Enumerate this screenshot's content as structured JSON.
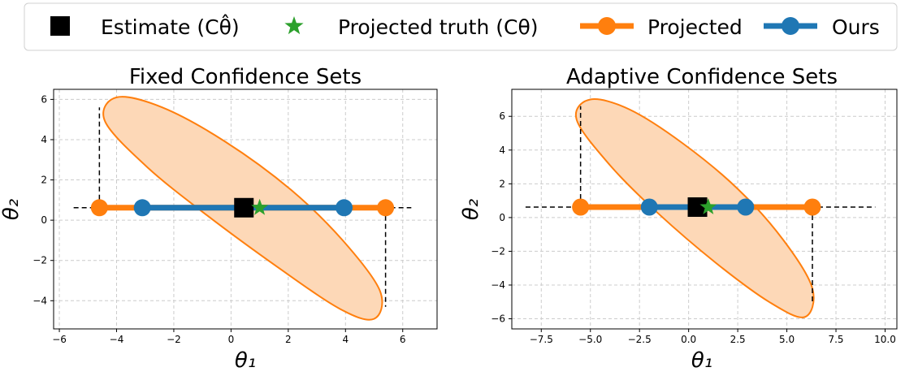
{
  "legend": {
    "items": [
      {
        "label": "Estimate (Cθ̂)",
        "marker": "square",
        "color": "#000000"
      },
      {
        "label": "Projected truth (Cθ)",
        "marker": "star",
        "color": "#2ca02c"
      },
      {
        "label": "Projected",
        "marker": "line-circle",
        "color": "#ff7f0e"
      },
      {
        "label": "Ours",
        "marker": "line-circle",
        "color": "#1f77b4"
      }
    ]
  },
  "colors": {
    "projected": "#ff7f0e",
    "ours": "#1f77b4",
    "estimate": "#000000",
    "truth": "#2ca02c",
    "ellipse_fill": "#fdd8b7",
    "grid": "#cccccc"
  },
  "chart_data": [
    {
      "type": "line",
      "title": "Fixed Confidence Sets",
      "xlabel": "θ₁",
      "ylabel": "θ₂",
      "xlim": [
        -6.2,
        7.2
      ],
      "ylim": [
        -5.4,
        6.5
      ],
      "xticks": [
        -6,
        -4,
        -2,
        0,
        2,
        4,
        6
      ],
      "xtick_labels": [
        "−6",
        "−4",
        "−2",
        "0",
        "2",
        "4",
        "6"
      ],
      "yticks": [
        -4,
        -2,
        0,
        2,
        4,
        6
      ],
      "ytick_labels": [
        "−4",
        "−2",
        "0",
        "2",
        "4",
        "6"
      ],
      "grid": true,
      "ellipse_boundary": [
        [
          -4.0,
          6.1
        ],
        [
          -2.4,
          5.6
        ],
        [
          -0.2,
          3.9
        ],
        [
          2.1,
          1.5
        ],
        [
          3.9,
          -1.0
        ],
        [
          5.2,
          -3.5
        ],
        [
          5.0,
          -4.9
        ],
        [
          3.8,
          -4.4
        ],
        [
          1.6,
          -2.3
        ],
        [
          -0.8,
          0.2
        ],
        [
          -2.9,
          2.6
        ],
        [
          -4.4,
          4.9
        ],
        [
          -4.0,
          6.1
        ]
      ],
      "dashed_line_y": 0.62,
      "dashed_line_x_range": [
        -5.5,
        6.3
      ],
      "projected_interval": [
        -4.6,
        5.4
      ],
      "ours_interval": [
        -3.1,
        3.95
      ],
      "vertical_dashed": [
        {
          "x": -4.6,
          "y_from": 0.62,
          "y_to": 5.6
        },
        {
          "x": 5.4,
          "y_from": 0.62,
          "y_to": -4.3
        }
      ],
      "estimate": [
        0.45,
        0.62
      ],
      "projected_truth": [
        1.0,
        0.62
      ]
    },
    {
      "type": "line",
      "title": "Adaptive Confidence Sets",
      "xlabel": "θ₁",
      "ylabel": "θ₂",
      "xlim": [
        -9.0,
        10.6
      ],
      "ylim": [
        -6.6,
        7.6
      ],
      "xticks": [
        -7.5,
        -5.0,
        -2.5,
        0.0,
        2.5,
        5.0,
        7.5,
        10.0
      ],
      "xtick_labels": [
        "−7.5",
        "−5.0",
        "−2.5",
        "0.0",
        "2.5",
        "5.0",
        "7.5",
        "10.0"
      ],
      "yticks": [
        -6,
        -4,
        -2,
        0,
        2,
        4,
        6
      ],
      "ytick_labels": [
        "−6",
        "−4",
        "−2",
        "0",
        "2",
        "4",
        "6"
      ],
      "grid": true,
      "ellipse_boundary": [
        [
          -5.0,
          7.0
        ],
        [
          -3.0,
          6.4
        ],
        [
          -0.3,
          4.4
        ],
        [
          2.5,
          1.7
        ],
        [
          4.8,
          -1.3
        ],
        [
          6.3,
          -4.2
        ],
        [
          5.9,
          -5.9
        ],
        [
          4.1,
          -5.0
        ],
        [
          1.4,
          -2.7
        ],
        [
          -1.6,
          0.3
        ],
        [
          -4.0,
          3.1
        ],
        [
          -5.7,
          5.8
        ],
        [
          -5.0,
          7.0
        ]
      ],
      "dashed_line_y": 0.62,
      "dashed_line_x_range": [
        -8.3,
        9.5
      ],
      "projected_interval": [
        -5.5,
        6.3
      ],
      "ours_interval": [
        -2.0,
        2.9
      ],
      "vertical_dashed": [
        {
          "x": -5.5,
          "y_from": 0.62,
          "y_to": 6.6
        },
        {
          "x": 6.3,
          "y_from": 0.62,
          "y_to": -5.1
        }
      ],
      "estimate": [
        0.45,
        0.62
      ],
      "projected_truth": [
        1.0,
        0.62
      ]
    }
  ]
}
